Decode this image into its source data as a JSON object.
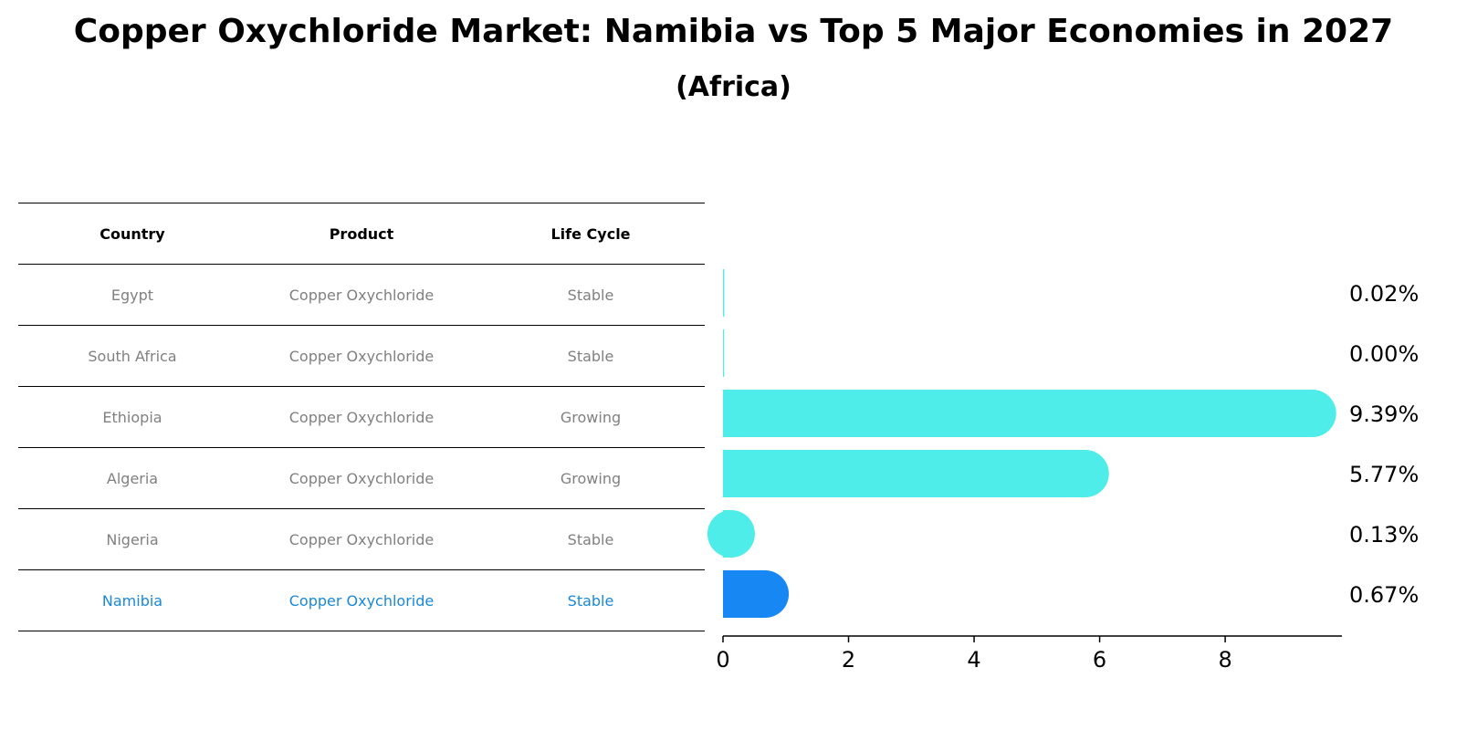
{
  "chart_data": {
    "type": "bar",
    "orientation": "horizontal",
    "title": "Copper Oxychloride Market: Namibia vs Top 5 Major Economies in 2027",
    "subtitle": "(Africa)",
    "xlabel": "",
    "ylabel": "",
    "xlim": [
      0,
      9.86
    ],
    "xticks": [
      "0",
      "2",
      "4",
      "6",
      "8"
    ],
    "categories": [
      "Egypt",
      "South Africa",
      "Ethiopia",
      "Algeria",
      "Nigeria",
      "Namibia"
    ],
    "values": [
      0.02,
      0.0,
      9.39,
      5.77,
      0.13,
      0.67
    ],
    "value_labels": [
      "0.02%",
      "0.00%",
      "9.39%",
      "5.77%",
      "0.13%",
      "0.67%"
    ],
    "highlight": "Namibia",
    "colors": {
      "default": "#4eede9",
      "highlight": "#1787f4",
      "table_highlight": "#1a88d8",
      "table_text": "#808080"
    }
  },
  "table": {
    "headers": [
      "Country",
      "Product",
      "Life Cycle"
    ],
    "rows": [
      {
        "country": "Egypt",
        "product": "Copper Oxychloride",
        "life_cycle": "Stable"
      },
      {
        "country": "South Africa",
        "product": "Copper Oxychloride",
        "life_cycle": "Stable"
      },
      {
        "country": "Ethiopia",
        "product": "Copper Oxychloride",
        "life_cycle": "Growing"
      },
      {
        "country": "Algeria",
        "product": "Copper Oxychloride",
        "life_cycle": "Growing"
      },
      {
        "country": "Nigeria",
        "product": "Copper Oxychloride",
        "life_cycle": "Stable"
      },
      {
        "country": "Namibia",
        "product": "Copper Oxychloride",
        "life_cycle": "Stable"
      }
    ]
  }
}
